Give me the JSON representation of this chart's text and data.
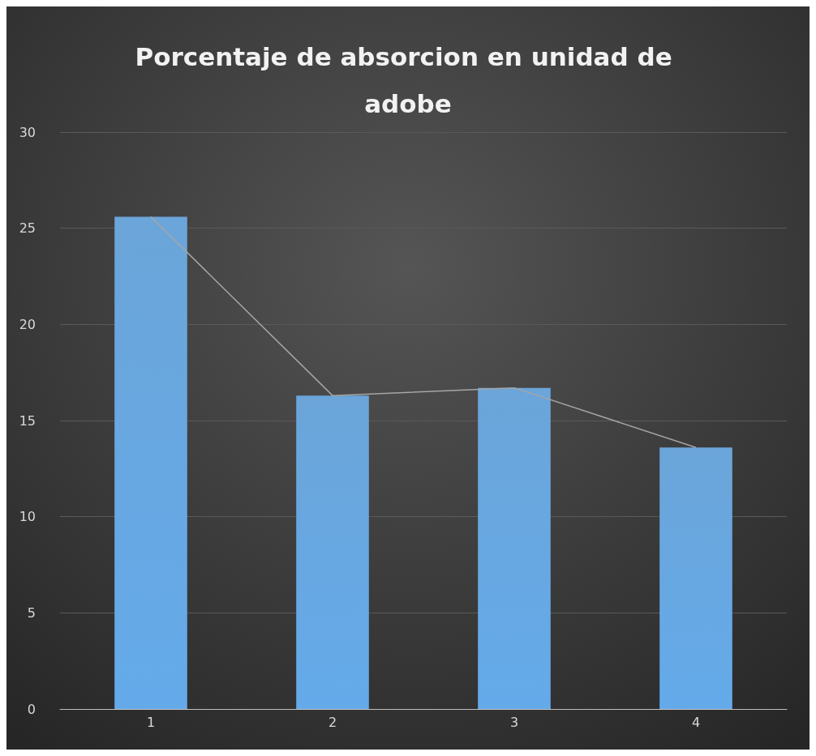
{
  "chart_data": {
    "type": "bar",
    "title": "Porcentaje de absorcion en unidad de adobe",
    "categories": [
      "1",
      "2",
      "3",
      "4"
    ],
    "series": [
      {
        "color": "#5b9bd5",
        "values": [
          25.6,
          16.3,
          16.7,
          13.6
        ]
      },
      {
        "type": "line",
        "color": "#a6a6a6",
        "values": [
          25.6,
          16.3,
          16.7,
          13.6
        ]
      }
    ],
    "ylim": [
      0,
      30
    ],
    "yticks": [
      0,
      5,
      10,
      15,
      20,
      25,
      30
    ],
    "grid": "y"
  }
}
